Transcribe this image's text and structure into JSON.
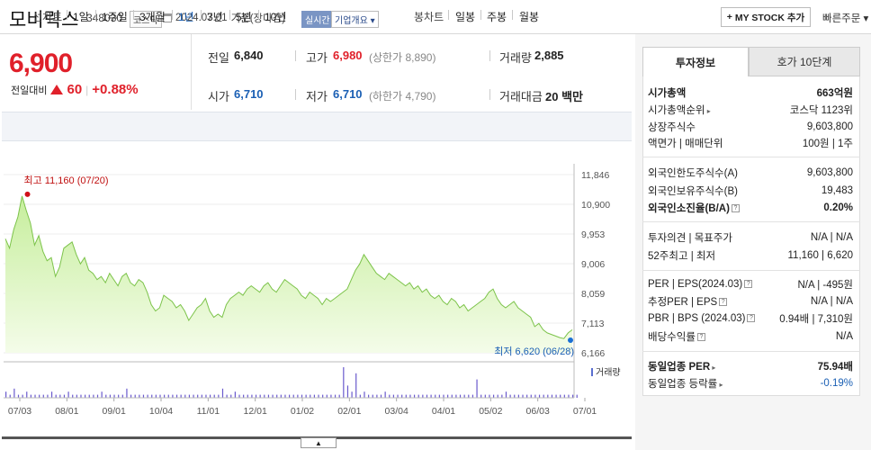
{
  "header": {
    "name": "모비릭스",
    "code": "348030",
    "market": "코스닥",
    "date": "2024.07.01",
    "basis": "기준(장마감)",
    "realtime": "실시간",
    "company_info": "기업개요",
    "my_stock": "MY STOCK 추가",
    "quick_order": "빠른주문"
  },
  "price": {
    "current": "6,900",
    "change_label": "전일대비",
    "change": "60",
    "change_pct": "+0.88%"
  },
  "quote": {
    "prev_label": "전일",
    "prev": "6,840",
    "high_label": "고가",
    "high": "6,980",
    "upper_limit": "(상한가 8,890)",
    "volume_label": "거래량",
    "volume": "2,885",
    "open_label": "시가",
    "open": "6,710",
    "low_label": "저가",
    "low": "6,710",
    "lower_limit": "(하한가 4,790)",
    "amount_label": "거래대금",
    "amount": "20 백만"
  },
  "periods": {
    "line_label": "선차트",
    "line_items": [
      "1일",
      "1주일",
      "3개월",
      "1년",
      "3년",
      "5년",
      "10년"
    ],
    "active": "1년",
    "candle_label": "봉차트",
    "candle_items": [
      "일봉",
      "주봉",
      "월봉"
    ]
  },
  "chart_data": {
    "type": "area",
    "y_ticks": [
      "11,846",
      "10,900",
      "9,953",
      "9,006",
      "8,059",
      "7,113",
      "6,166"
    ],
    "ylim": [
      6166,
      11846
    ],
    "x_ticks": [
      "07/03",
      "08/01",
      "09/01",
      "10/04",
      "11/01",
      "12/01",
      "01/02",
      "02/01",
      "03/04",
      "04/01",
      "05/02",
      "06/03",
      "07/01"
    ],
    "max_label": "최고 11,160 (07/20)",
    "min_label": "최저 6,620 (06/28)",
    "volume_label": "거래량",
    "prices": [
      9800,
      9500,
      10100,
      10500,
      11160,
      10700,
      10300,
      9600,
      9900,
      9400,
      9100,
      9200,
      8600,
      8900,
      9500,
      9600,
      9700,
      9300,
      9000,
      9200,
      8800,
      8700,
      8500,
      8600,
      8400,
      8700,
      8500,
      8300,
      8600,
      8700,
      8400,
      8300,
      8500,
      8400,
      8100,
      7700,
      7500,
      7600,
      8000,
      7900,
      7800,
      7600,
      7700,
      7500,
      7200,
      7400,
      7600,
      7700,
      7900,
      7500,
      7300,
      7400,
      7300,
      7700,
      7900,
      8000,
      8100,
      8000,
      8200,
      8300,
      8200,
      8100,
      8300,
      8400,
      8200,
      8100,
      8300,
      8500,
      8400,
      8300,
      8200,
      8000,
      7900,
      8100,
      8000,
      7900,
      7700,
      7900,
      7800,
      7900,
      8000,
      8100,
      8200,
      8500,
      8800,
      9000,
      9300,
      9100,
      8900,
      8700,
      8600,
      8500,
      8700,
      8600,
      8500,
      8400,
      8300,
      8400,
      8200,
      8300,
      8100,
      8200,
      8000,
      7900,
      8000,
      7800,
      7700,
      7900,
      7800,
      7600,
      7700,
      7500,
      7600,
      7700,
      7800,
      7900,
      8100,
      8200,
      7900,
      7700,
      7600,
      7700,
      7800,
      7600,
      7500,
      7400,
      7300,
      7000,
      7100,
      6900,
      6800,
      6750,
      6700,
      6650,
      6620,
      6800,
      6900
    ],
    "volumes": [
      2,
      1,
      3,
      1,
      1,
      2,
      1,
      1,
      1,
      1,
      1,
      2,
      1,
      1,
      1,
      2,
      1,
      1,
      1,
      1,
      1,
      1,
      1,
      2,
      1,
      1,
      1,
      1,
      1,
      3,
      1,
      1,
      1,
      1,
      1,
      1,
      1,
      1,
      1,
      1,
      1,
      1,
      1,
      1,
      1,
      1,
      1,
      1,
      1,
      1,
      1,
      1,
      3,
      1,
      1,
      2,
      1,
      1,
      1,
      1,
      1,
      1,
      1,
      1,
      1,
      1,
      1,
      1,
      1,
      1,
      1,
      1,
      1,
      1,
      1,
      1,
      1,
      1,
      1,
      1,
      1,
      10,
      4,
      2,
      8,
      1,
      2,
      1,
      1,
      1,
      1,
      2,
      1,
      1,
      1,
      1,
      1,
      1,
      1,
      1,
      1,
      1,
      1,
      1,
      1,
      1,
      1,
      1,
      1,
      1,
      1,
      1,
      1,
      6,
      1,
      1,
      1,
      1,
      1,
      1,
      2,
      1,
      1,
      1,
      1,
      1,
      1,
      1,
      1,
      1,
      1,
      1,
      1,
      1,
      1,
      1,
      1,
      1
    ]
  },
  "tabs": {
    "info": "투자정보",
    "orderbook": "호가 10단계"
  },
  "info": {
    "mcap_label": "시가총액",
    "mcap": "663억원",
    "mcap_rank_label": "시가총액순위",
    "mcap_rank": "코스닥 1123위",
    "shares_label": "상장주식수",
    "shares": "9,603,800",
    "par_label": "액면가 | 매매단위",
    "par": "100원 | 1주",
    "foreign_limit_label": "외국인한도주식수(A)",
    "foreign_limit": "9,603,800",
    "foreign_hold_label": "외국인보유주식수(B)",
    "foreign_hold": "19,483",
    "foreign_ratio_label": "외국인소진율(B/A)",
    "foreign_ratio": "0.20%",
    "opinion_label": "투자의견 | 목표주가",
    "opinion": "N/A | N/A",
    "range_label": "52주최고 | 최저",
    "range": "11,160 | 6,620",
    "per_label": "PER | EPS(2024.03)",
    "per": "N/A | -495원",
    "est_per_label": "추정PER | EPS",
    "est_per": "N/A | N/A",
    "pbr_label": "PBR | BPS (2024.03)",
    "pbr": "0.94배 | 7,310원",
    "div_label": "배당수익률",
    "div": "N/A",
    "sector_per_label": "동일업종 PER",
    "sector_per": "75.94배",
    "sector_chg_label": "동일업종 등락률",
    "sector_chg": "-0.19%"
  }
}
